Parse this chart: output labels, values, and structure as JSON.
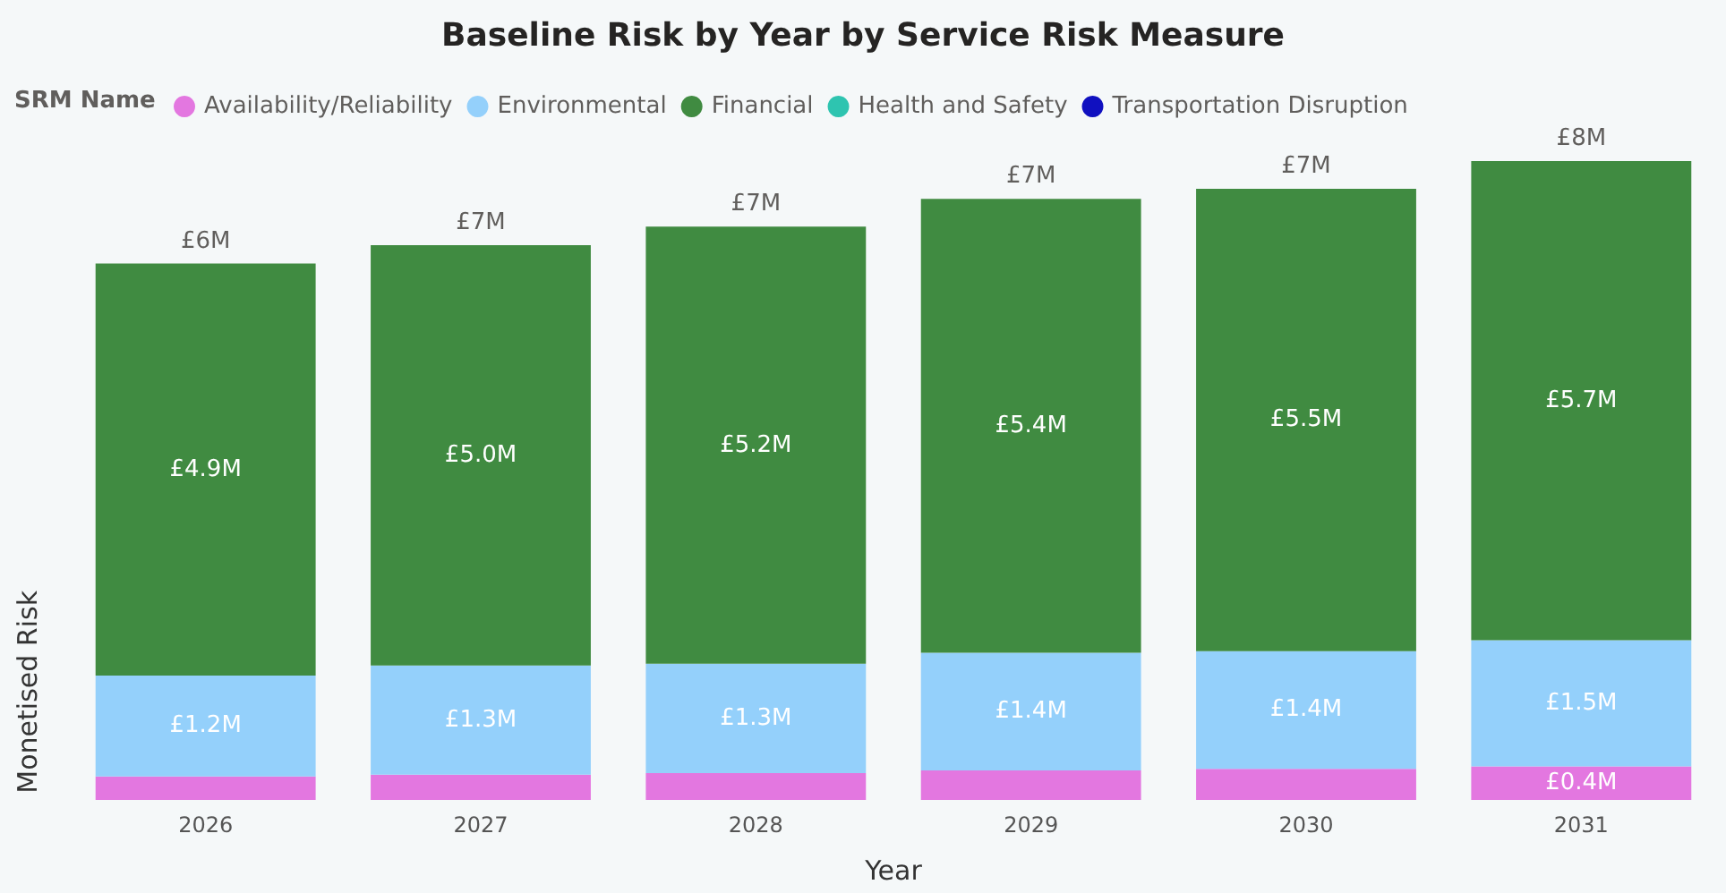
{
  "chart_data": {
    "type": "bar",
    "title": "Baseline Risk by Year by Service Risk Measure",
    "xlabel": "Year",
    "ylabel": "Monetised Risk",
    "legend_title": "SRM Name",
    "legend": "top left",
    "stacked": true,
    "categories": [
      "2026",
      "2027",
      "2028",
      "2029",
      "2030",
      "2031"
    ],
    "series": [
      {
        "name": "Availability/Reliability",
        "color": "#e377e0",
        "values": [
          0.28,
          0.3,
          0.32,
          0.35,
          0.37,
          0.4
        ],
        "value_labels": [
          null,
          null,
          null,
          null,
          null,
          "£0.4M"
        ]
      },
      {
        "name": "Environmental",
        "color": "#94d0fb",
        "values": [
          1.2,
          1.3,
          1.3,
          1.4,
          1.4,
          1.5
        ],
        "value_labels": [
          "£1.2M",
          "£1.3M",
          "£1.3M",
          "£1.4M",
          "£1.4M",
          "£1.5M"
        ]
      },
      {
        "name": "Financial",
        "color": "#408b41",
        "values": [
          4.9,
          5.0,
          5.2,
          5.4,
          5.5,
          5.7
        ],
        "value_labels": [
          "£4.9M",
          "£5.0M",
          "£5.2M",
          "£5.4M",
          "£5.5M",
          "£5.7M"
        ]
      },
      {
        "name": "Health and Safety",
        "color": "#2ec4b0",
        "values": [
          null,
          null,
          null,
          null,
          null,
          null
        ]
      },
      {
        "name": "Transportation Disruption",
        "color": "#1010c0",
        "values": [
          null,
          null,
          null,
          null,
          null,
          null
        ]
      }
    ],
    "totals": [
      "£6M",
      "£7M",
      "£7M",
      "£7M",
      "£7M",
      "£8M"
    ]
  }
}
